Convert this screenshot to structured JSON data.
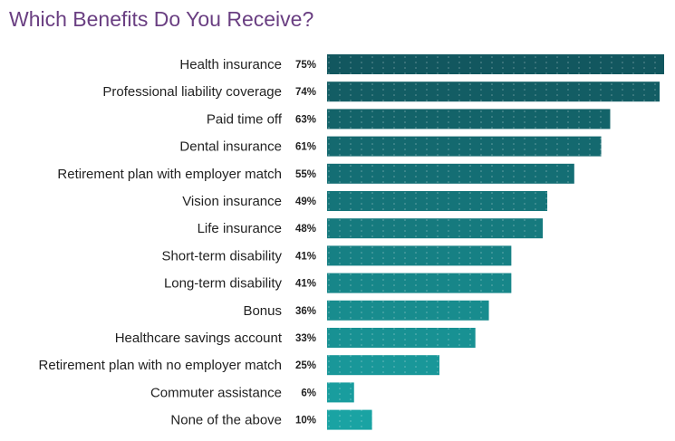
{
  "chart_data": {
    "type": "bar",
    "orientation": "horizontal",
    "title": "Which Benefits Do You Receive?",
    "categories": [
      "Health insurance",
      "Professional liability coverage",
      "Paid time off",
      "Dental insurance",
      "Retirement plan with employer match",
      "Vision insurance",
      "Life insurance",
      "Short-term disability",
      "Long-term disability",
      "Bonus",
      "Healthcare savings account",
      "Retirement plan with no employer match",
      "Commuter assistance",
      "None of the above"
    ],
    "values": [
      75,
      74,
      63,
      61,
      55,
      49,
      48,
      41,
      41,
      36,
      33,
      25,
      6,
      10
    ],
    "value_labels": [
      "75%",
      "74%",
      "63%",
      "61%",
      "55%",
      "49%",
      "48%",
      "41%",
      "41%",
      "36%",
      "33%",
      "25%",
      "6%",
      "10%"
    ],
    "unit": "%",
    "xlim": [
      0,
      75
    ],
    "grid": false,
    "legend": "none"
  },
  "colors": {
    "title": "#6a3f82",
    "bar_top": "#12575f",
    "bar_bottom": "#1aa3a3"
  }
}
